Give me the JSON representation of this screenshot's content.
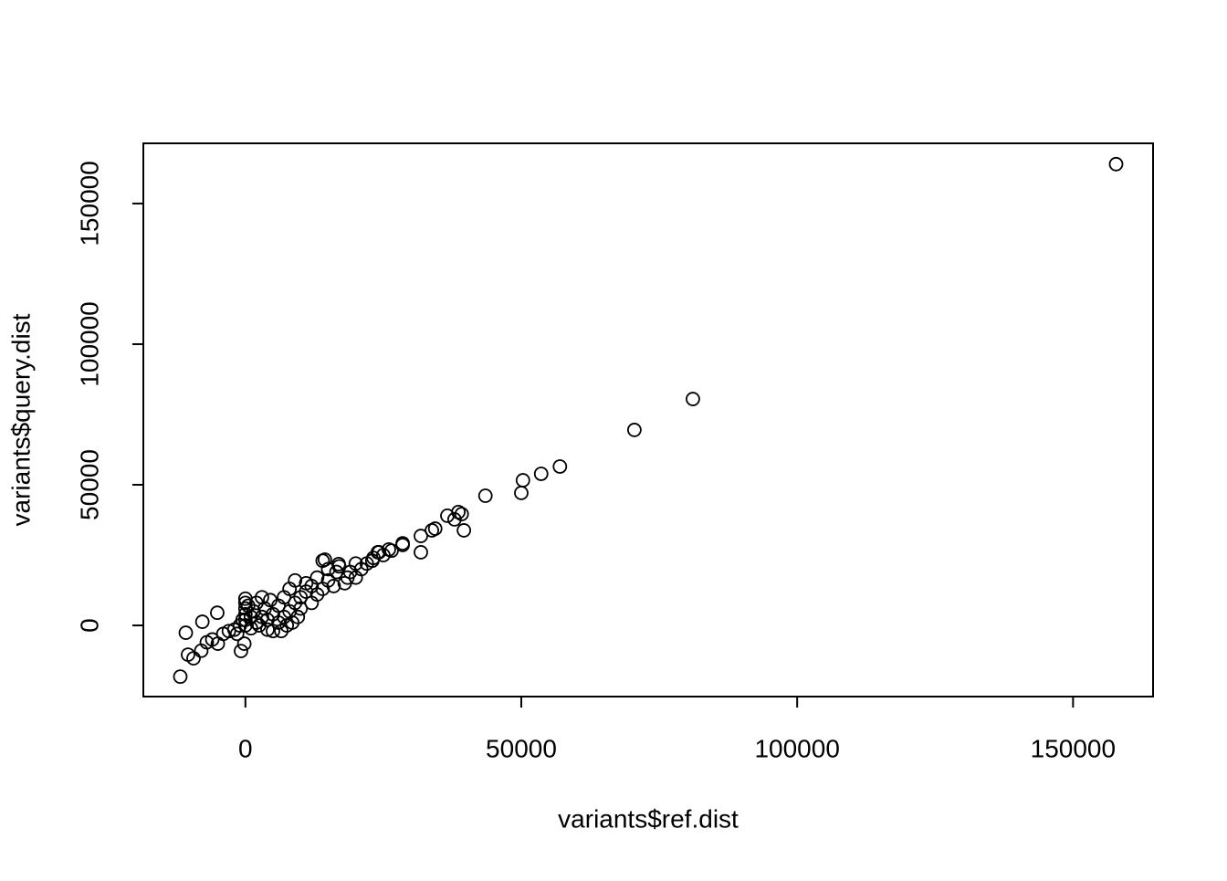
{
  "chart_data": {
    "type": "scatter",
    "xlabel": "variants$ref.dist",
    "ylabel": "variants$query.dist",
    "xlim": [
      -18500,
      164500
    ],
    "ylim": [
      -25300,
      171400
    ],
    "xticks": [
      0,
      50000,
      100000,
      150000
    ],
    "yticks": [
      0,
      50000,
      100000,
      150000
    ],
    "color": "#000000",
    "x": [
      157800,
      81100,
      70500,
      57000,
      53600,
      50300,
      50000,
      43500,
      39200,
      38600,
      37900,
      39600,
      36600,
      34400,
      33800,
      31800,
      31800,
      28500,
      28500,
      26500,
      24200,
      23200,
      -11800,
      -10800,
      -9400,
      -10400,
      -7800,
      -800,
      -200,
      -5100,
      14400,
      16900,
      -8000,
      -7000,
      -6000,
      -5000,
      -4000,
      -3000,
      -2000,
      -1500,
      -1000,
      -500,
      0,
      0,
      0,
      0,
      0,
      0,
      500,
      1000,
      1000,
      1500,
      2000,
      2000,
      2500,
      3000,
      3000,
      3500,
      4000,
      4000,
      4500,
      5000,
      5000,
      6000,
      6000,
      6500,
      7000,
      7000,
      7500,
      8000,
      8000,
      8500,
      9000,
      9000,
      9500,
      10000,
      10000,
      11000,
      11000,
      12000,
      12000,
      13000,
      13000,
      14000,
      14000,
      15000,
      15000,
      16000,
      16500,
      17000,
      18000,
      18500,
      19000,
      20000,
      20000,
      21000,
      22000,
      23000,
      24000,
      25000,
      26000
    ],
    "y": [
      164000,
      80500,
      69500,
      56500,
      53900,
      51600,
      47100,
      46100,
      39600,
      40300,
      37700,
      33800,
      39000,
      34400,
      33800,
      31800,
      26000,
      28600,
      29200,
      26600,
      26000,
      24000,
      -18200,
      -2600,
      -11700,
      -10400,
      1300,
      -9100,
      -6500,
      4500,
      23400,
      21800,
      -9000,
      -6000,
      -5000,
      -6500,
      -3000,
      -2000,
      -1500,
      -3000,
      0,
      2000,
      0,
      2000,
      4000,
      6000,
      8000,
      9500,
      7000,
      3000,
      -1000,
      5000,
      1000,
      8000,
      0,
      3000,
      10000,
      6000,
      -1500,
      2000,
      9000,
      4000,
      -2000,
      1000,
      7000,
      -2000,
      3000,
      10000,
      0,
      5000,
      13000,
      1000,
      8000,
      16000,
      3000,
      10000,
      6000,
      12000,
      15000,
      8000,
      14000,
      11000,
      17000,
      13000,
      23000,
      16000,
      20000,
      14000,
      19000,
      21000,
      15000,
      17000,
      19000,
      17000,
      22000,
      20000,
      22000,
      23000,
      26000,
      25000,
      27000
    ]
  }
}
